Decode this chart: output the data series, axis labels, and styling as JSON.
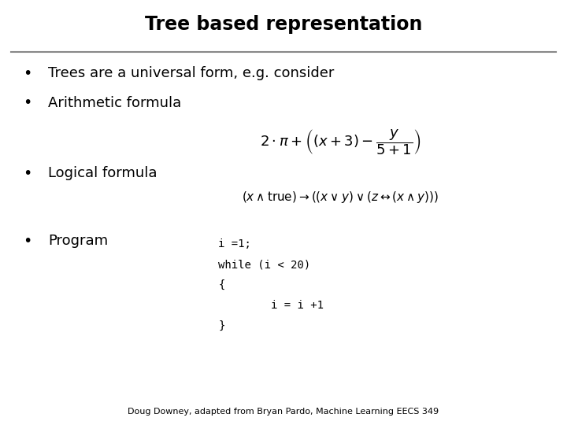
{
  "title": "Tree based representation",
  "title_fontsize": 17,
  "title_fontweight": "bold",
  "bg_color": "#ffffff",
  "text_color": "#000000",
  "bullet1": "Trees are a universal form, e.g. consider",
  "bullet2": "Arithmetic formula",
  "arith_formula": "$2 \\cdot \\pi + \\left( (x+3) - \\dfrac{y}{5+1} \\right)$",
  "bullet3": "Logical formula",
  "logical_formula": "$(x \\wedge \\mathrm{true}) \\rightarrow (( x \\vee y ) \\vee (z \\leftrightarrow (x \\wedge y)))$",
  "bullet4": "Program",
  "program_lines": [
    "i =1;",
    "while (i < 20)",
    "{",
    "        i = i +1",
    "}"
  ],
  "footer": "Doug Downey, adapted from Bryan Pardo, Machine Learning EECS 349",
  "bullet_fontsize": 13,
  "formula_fontsize": 11,
  "program_fontsize": 10,
  "footer_fontsize": 8,
  "line_color": "#888888"
}
